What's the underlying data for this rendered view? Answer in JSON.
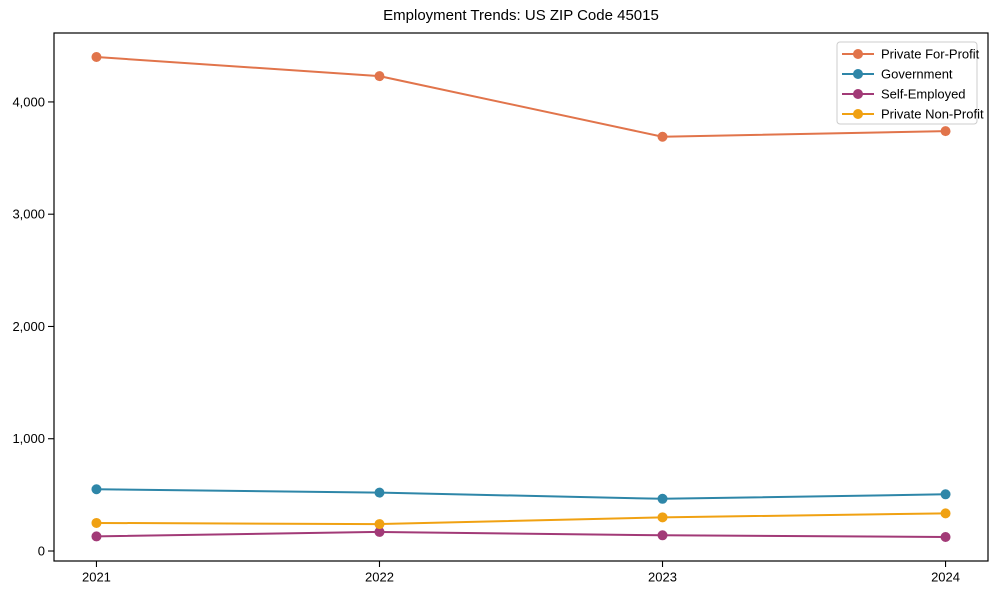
{
  "chart_data": {
    "type": "line",
    "title": "Employment Trends: US ZIP Code 45015",
    "categories": [
      "2021",
      "2022",
      "2023",
      "2024"
    ],
    "series": [
      {
        "name": "Private For-Profit",
        "color": "#e1744b",
        "values": [
          4400,
          4230,
          3690,
          3740
        ]
      },
      {
        "name": "Government",
        "color": "#2e86a8",
        "values": [
          550,
          520,
          465,
          505
        ]
      },
      {
        "name": "Self-Employed",
        "color": "#a23a77",
        "values": [
          130,
          170,
          140,
          125
        ]
      },
      {
        "name": "Private Non-Profit",
        "color": "#f0a112",
        "values": [
          250,
          240,
          300,
          335
        ]
      }
    ],
    "xlabel": "",
    "ylabel": "",
    "xlim": [
      2020.85,
      2024.15
    ],
    "ylim": [
      -89,
      4614
    ],
    "yticks": [
      0,
      1000,
      2000,
      3000,
      4000
    ],
    "ytick_labels": [
      "0",
      "1,000",
      "2,000",
      "3,000",
      "4,000"
    ],
    "grid": false,
    "marker": "circle",
    "legend": {
      "position": "upper-right",
      "frame": true,
      "frame_color": "#cccccc"
    },
    "axis_color": "#000000",
    "background": "#ffffff"
  }
}
